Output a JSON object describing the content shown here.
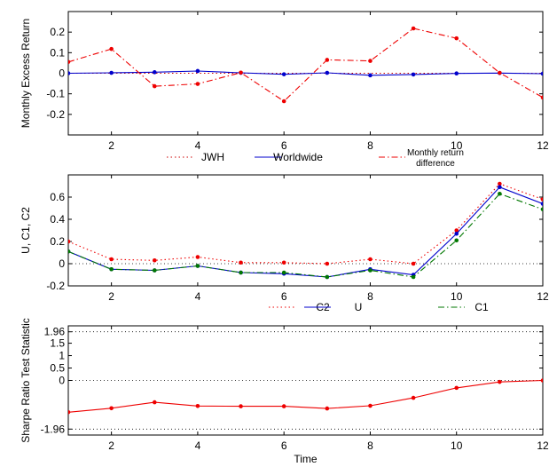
{
  "chart_data": [
    {
      "type": "line",
      "xlabel": "",
      "ylabel": "Monthly Excess Return",
      "xlim": [
        1,
        12
      ],
      "ylim": [
        -0.3,
        0.3
      ],
      "xticks": [
        "2",
        "4",
        "6",
        "8",
        "10",
        "12"
      ],
      "yticks": [
        "0.2",
        "0.1",
        "0",
        "-0.1",
        "-0.2"
      ],
      "x": [
        1,
        2,
        3,
        4,
        5,
        6,
        7,
        8,
        9,
        10,
        11,
        12
      ],
      "grid": false,
      "legend": "bottom",
      "series": [
        {
          "name": "JWH",
          "color": "#cc0000",
          "style": "dotted",
          "markers": false,
          "values": [
            0.0,
            0.0,
            0.0,
            0.0,
            0.0,
            0.0,
            0.0,
            0.0,
            0.0,
            0.0,
            0.0,
            0.0
          ]
        },
        {
          "name": "Worldwide",
          "color": "#0000cc",
          "style": "solid",
          "markers": true,
          "values": [
            0.0,
            0.002,
            0.005,
            0.011,
            0.002,
            -0.005,
            0.002,
            -0.01,
            -0.006,
            -0.001,
            0.001,
            -0.002
          ]
        },
        {
          "name": "Monthly return difference",
          "color": "#ee0000",
          "style": "dashdot",
          "markers": true,
          "values": [
            0.055,
            0.118,
            -0.063,
            -0.052,
            0.003,
            -0.136,
            0.065,
            0.06,
            0.218,
            0.17,
            0.002,
            -0.118
          ]
        }
      ]
    },
    {
      "type": "line",
      "xlabel": "",
      "ylabel": "U, C1, C2",
      "xlim": [
        1,
        12
      ],
      "ylim": [
        -0.2,
        0.8
      ],
      "xticks": [
        "2",
        "4",
        "6",
        "8",
        "10",
        "12"
      ],
      "yticks": [
        "0.6",
        "0.4",
        "0.2",
        "0",
        "-0.2"
      ],
      "x": [
        1,
        2,
        3,
        4,
        5,
        6,
        7,
        8,
        9,
        10,
        11,
        12
      ],
      "reference_lines": [
        0
      ],
      "grid": false,
      "legend": "bottom",
      "series": [
        {
          "name": "C2",
          "color": "#ee0000",
          "style": "dotted",
          "markers": true,
          "values": [
            0.2,
            0.04,
            0.03,
            0.06,
            0.01,
            0.01,
            0.0,
            0.04,
            0.0,
            0.3,
            0.72,
            0.58
          ]
        },
        {
          "name": "U",
          "color": "#0000cc",
          "style": "solid",
          "markers": true,
          "values": [
            0.11,
            -0.05,
            -0.06,
            -0.02,
            -0.08,
            -0.09,
            -0.12,
            -0.05,
            -0.1,
            0.27,
            0.69,
            0.54
          ]
        },
        {
          "name": "C1",
          "color": "#007700",
          "style": "dashdot",
          "markers": true,
          "values": [
            0.11,
            -0.05,
            -0.06,
            -0.02,
            -0.08,
            -0.08,
            -0.12,
            -0.06,
            -0.12,
            0.21,
            0.63,
            0.49
          ]
        }
      ]
    },
    {
      "type": "line",
      "xlabel": "Time",
      "ylabel": "Sharpe Ratio Test Statistic",
      "xlim": [
        1,
        12
      ],
      "ylim": [
        -2.2,
        2.2
      ],
      "xticks": [
        "2",
        "4",
        "6",
        "8",
        "10",
        "12"
      ],
      "yticks": [
        "1.96",
        "1.5",
        "1",
        "0.5",
        "0",
        "-1.96"
      ],
      "x": [
        1,
        2,
        3,
        4,
        5,
        6,
        7,
        8,
        9,
        10,
        11,
        12
      ],
      "reference_lines": [
        1.96,
        0,
        -1.96
      ],
      "grid": false,
      "series": [
        {
          "color": "#ee0000",
          "style": "solid",
          "markers": true,
          "values": [
            -1.28,
            -1.12,
            -0.88,
            -1.03,
            -1.04,
            -1.04,
            -1.13,
            -1.02,
            -0.7,
            -0.3,
            -0.06,
            0.0
          ]
        }
      ]
    }
  ]
}
